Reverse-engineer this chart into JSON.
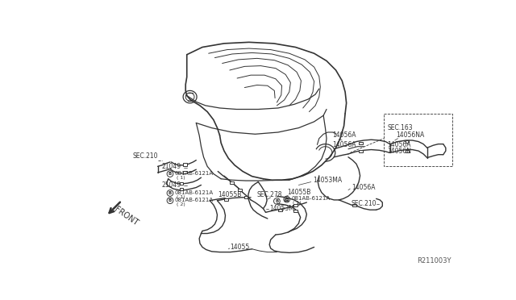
{
  "bg_color": "#ffffff",
  "line_color": "#333333",
  "watermark": "R211003Y",
  "labels": {
    "SEC163": "SEC.163",
    "SEC210_top": "SEC.210",
    "SEC210_bot": "SEC.210",
    "SEC278": "SEC.278",
    "14056A_a": "14056A",
    "14056A_b": "14056A",
    "14056A_c": "14056A",
    "14056A_d": "14056A",
    "14056NA": "14056NA",
    "14056N": "14056N",
    "14053MA": "14053MA",
    "14053M": "14053M",
    "21049_a": "21049",
    "21049_b": "21049",
    "081AB_a": "081AB-6121A",
    "081AB_b": "081AB-6121A",
    "081AB_c": "081AB-6121A",
    "081AB_d": "081AB-6121A",
    "081AB_a_sub": "( 1)",
    "081AB_b_sub": "( 1)",
    "081AB_c_sub": "( 1)",
    "081AB_d_sub": "( 2)",
    "14055": "14055",
    "14055B_a": "14055B",
    "14055B_b": "14055B",
    "FRONT": "FRONT"
  },
  "figsize": [
    6.4,
    3.72
  ],
  "dpi": 100
}
